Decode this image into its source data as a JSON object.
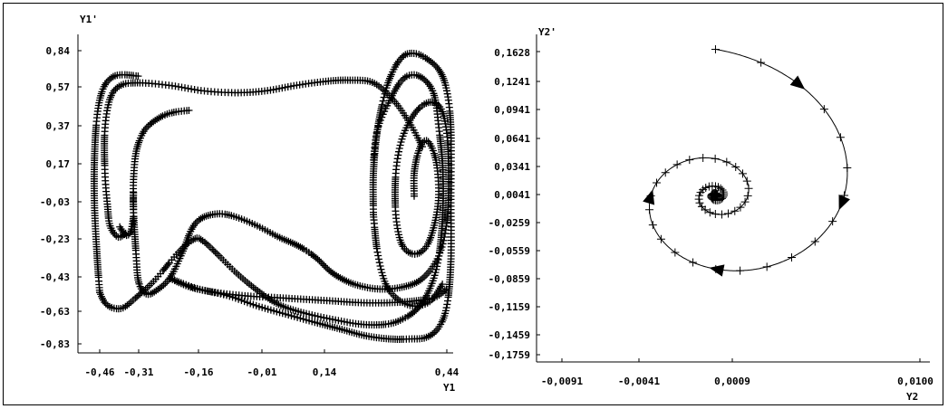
{
  "chart_data": [
    {
      "type": "scatter",
      "title": "",
      "xlabel": "Y1",
      "ylabel": "Y1'",
      "x_ticks": [
        "-0,46",
        "-0,31",
        "-0,16",
        "-0,01",
        "0,14",
        "0,44"
      ],
      "x_tick_values": [
        -0.46,
        -0.31,
        -0.16,
        -0.01,
        0.14,
        0.44
      ],
      "y_ticks": [
        "0,84",
        "0,57",
        "0,37",
        "0,17",
        "-0,03",
        "-0,23",
        "-0,43",
        "-0,63",
        "-0,83"
      ],
      "y_tick_values": [
        0.84,
        0.57,
        0.37,
        0.17,
        -0.03,
        -0.23,
        -0.43,
        -0.63,
        -0.83
      ],
      "xlim": [
        -0.52,
        0.44
      ],
      "ylim": [
        -0.88,
        0.88
      ],
      "grid": false,
      "marker": "plus",
      "color": "#000000",
      "series": [
        {
          "points": [
            [
              0.36,
              0.0
            ],
            [
              0.36,
              0.12
            ],
            [
              0.37,
              0.23
            ],
            [
              0.385,
              0.29
            ],
            [
              0.4,
              0.27
            ],
            [
              0.415,
              0.17
            ],
            [
              0.42,
              0.0
            ],
            [
              0.41,
              -0.15
            ],
            [
              0.39,
              -0.27
            ],
            [
              0.36,
              -0.31
            ],
            [
              0.33,
              -0.26
            ],
            [
              0.315,
              -0.1
            ],
            [
              0.315,
              0.12
            ],
            [
              0.33,
              0.3
            ],
            [
              0.36,
              0.43
            ],
            [
              0.395,
              0.49
            ],
            [
              0.425,
              0.46
            ],
            [
              0.44,
              0.33
            ],
            [
              0.445,
              0.1
            ],
            [
              0.44,
              -0.14
            ],
            [
              0.42,
              -0.32
            ],
            [
              0.38,
              -0.44
            ],
            [
              0.33,
              -0.49
            ],
            [
              0.27,
              -0.5
            ],
            [
              0.21,
              -0.47
            ],
            [
              0.16,
              -0.41
            ],
            [
              0.12,
              -0.33
            ],
            [
              0.08,
              -0.27
            ],
            [
              0.03,
              -0.22
            ],
            [
              -0.03,
              -0.15
            ],
            [
              -0.09,
              -0.1
            ],
            [
              -0.13,
              -0.1
            ],
            [
              -0.16,
              -0.13
            ],
            [
              -0.18,
              -0.19
            ],
            [
              -0.2,
              -0.3
            ],
            [
              -0.23,
              -0.43
            ],
            [
              -0.26,
              -0.5
            ],
            [
              -0.29,
              -0.53
            ],
            [
              -0.31,
              -0.46
            ],
            [
              -0.32,
              -0.31
            ],
            [
              -0.33,
              -0.08
            ],
            [
              -0.33,
              0.02
            ]
          ]
        },
        {
          "points": [
            [
              -0.33,
              -0.07
            ],
            [
              -0.33,
              0.08
            ],
            [
              -0.32,
              0.23
            ],
            [
              -0.3,
              0.33
            ],
            [
              -0.28,
              0.38
            ],
            [
              -0.25,
              0.42
            ],
            [
              -0.22,
              0.44
            ],
            [
              -0.18,
              0.45
            ]
          ]
        },
        {
          "points": [
            [
              -0.36,
              -0.2
            ],
            [
              -0.39,
              -0.22
            ],
            [
              -0.42,
              -0.16
            ],
            [
              -0.43,
              -0.05
            ],
            [
              -0.44,
              0.13
            ],
            [
              -0.44,
              0.35
            ],
            [
              -0.42,
              0.51
            ],
            [
              -0.38,
              0.58
            ],
            [
              -0.31,
              0.6
            ],
            [
              -0.23,
              0.58
            ],
            [
              -0.15,
              0.55
            ],
            [
              -0.07,
              0.54
            ],
            [
              0.0,
              0.55
            ],
            [
              0.07,
              0.58
            ],
            [
              0.14,
              0.61
            ],
            [
              0.2,
              0.62
            ],
            [
              0.26,
              0.6
            ],
            [
              0.31,
              0.5
            ],
            [
              0.35,
              0.38
            ],
            [
              0.38,
              0.26
            ]
          ]
        },
        {
          "points": [
            [
              -0.33,
              -0.11
            ],
            [
              -0.34,
              -0.19
            ],
            [
              -0.36,
              -0.21
            ],
            [
              -0.385,
              -0.16
            ]
          ]
        },
        {
          "points": [
            [
              -0.46,
              -0.52
            ],
            [
              -0.47,
              -0.32
            ],
            [
              -0.48,
              -0.05
            ],
            [
              -0.48,
              0.2
            ],
            [
              -0.47,
              0.42
            ],
            [
              -0.45,
              0.55
            ],
            [
              -0.42,
              0.63
            ],
            [
              -0.38,
              0.66
            ],
            [
              -0.31,
              0.65
            ]
          ]
        },
        {
          "points": [
            [
              -0.46,
              -0.52
            ],
            [
              -0.44,
              -0.58
            ],
            [
              -0.41,
              -0.61
            ],
            [
              -0.37,
              -0.61
            ],
            [
              -0.32,
              -0.55
            ],
            [
              -0.27,
              -0.45
            ],
            [
              -0.21,
              -0.3
            ],
            [
              -0.17,
              -0.23
            ],
            [
              -0.15,
              -0.24
            ],
            [
              -0.12,
              -0.3
            ],
            [
              -0.07,
              -0.41
            ],
            [
              -0.02,
              -0.51
            ],
            [
              0.03,
              -0.59
            ],
            [
              0.09,
              -0.64
            ],
            [
              0.16,
              -0.68
            ],
            [
              0.23,
              -0.71
            ],
            [
              0.29,
              -0.71
            ],
            [
              0.33,
              -0.68
            ],
            [
              0.37,
              -0.61
            ],
            [
              0.4,
              -0.49
            ],
            [
              0.42,
              -0.33
            ],
            [
              0.43,
              -0.1
            ],
            [
              0.43,
              0.15
            ],
            [
              0.42,
              0.37
            ],
            [
              0.41,
              0.52
            ],
            [
              0.39,
              0.61
            ],
            [
              0.36,
              0.66
            ],
            [
              0.33,
              0.62
            ],
            [
              0.3,
              0.5
            ],
            [
              0.27,
              0.35
            ],
            [
              0.26,
              0.18
            ]
          ]
        },
        {
          "points": [
            [
              0.26,
              -0.1
            ],
            [
              0.26,
              0.12
            ],
            [
              0.27,
              0.35
            ],
            [
              0.29,
              0.55
            ],
            [
              0.31,
              0.7
            ],
            [
              0.33,
              0.79
            ],
            [
              0.35,
              0.82
            ],
            [
              0.38,
              0.8
            ],
            [
              0.42,
              0.7
            ],
            [
              0.44,
              0.55
            ],
            [
              0.45,
              0.35
            ],
            [
              0.45,
              0.0
            ],
            [
              0.45,
              -0.35
            ],
            [
              0.44,
              -0.6
            ],
            [
              0.42,
              -0.73
            ],
            [
              0.39,
              -0.79
            ],
            [
              0.35,
              -0.8
            ],
            [
              0.3,
              -0.8
            ],
            [
              0.24,
              -0.78
            ],
            [
              0.18,
              -0.74
            ],
            [
              0.12,
              -0.7
            ],
            [
              0.05,
              -0.65
            ],
            [
              -0.02,
              -0.6
            ],
            [
              -0.09,
              -0.54
            ],
            [
              -0.16,
              -0.5
            ],
            [
              -0.22,
              -0.45
            ]
          ]
        },
        {
          "points": [
            [
              -0.23,
              -0.44
            ],
            [
              -0.18,
              -0.49
            ],
            [
              -0.12,
              -0.52
            ],
            [
              -0.05,
              -0.54
            ],
            [
              0.02,
              -0.55
            ],
            [
              0.09,
              -0.56
            ],
            [
              0.16,
              -0.57
            ],
            [
              0.23,
              -0.58
            ],
            [
              0.3,
              -0.58
            ],
            [
              0.36,
              -0.57
            ],
            [
              0.41,
              -0.55
            ],
            [
              0.44,
              -0.5
            ]
          ]
        },
        {
          "points": [
            [
              0.26,
              -0.1
            ],
            [
              0.27,
              -0.3
            ],
            [
              0.29,
              -0.47
            ],
            [
              0.32,
              -0.56
            ],
            [
              0.36,
              -0.6
            ],
            [
              0.4,
              -0.57
            ],
            [
              0.43,
              -0.47
            ]
          ]
        }
      ]
    },
    {
      "type": "line",
      "title": "",
      "xlabel": "Y2",
      "ylabel": "Y2'",
      "x_ticks": [
        "-0,0091",
        "-0,0041",
        "0,0009",
        "0,0100"
      ],
      "x_tick_values": [
        -0.0091,
        -0.0041,
        0.0009,
        0.01
      ],
      "y_ticks": [
        "0,1628",
        "0,1241",
        "0,0941",
        "0,0641",
        "0,0341",
        "0,0041",
        "-0,0259",
        "-0,0559",
        "-0,0859",
        "-0,1159",
        "-0,1459",
        "-0,1759"
      ],
      "y_tick_values": [
        0.1628,
        0.1241,
        0.0941,
        0.0641,
        0.0341,
        0.0041,
        -0.0259,
        -0.0559,
        -0.0859,
        -0.1159,
        -0.1459,
        -0.1759
      ],
      "xlim": [
        -0.0091,
        0.0105
      ],
      "ylim": [
        -0.182,
        0.167
      ],
      "grid": false,
      "marker": "plus",
      "color": "#000000",
      "series": [
        {
          "spiral": {
            "center_x": 0.0,
            "center_y": 0.003,
            "outer_radius_x": 0.0089,
            "outer_radius_y": 0.1628,
            "turns": 9,
            "direction": "clockwise",
            "start": "top"
          }
        }
      ]
    }
  ]
}
